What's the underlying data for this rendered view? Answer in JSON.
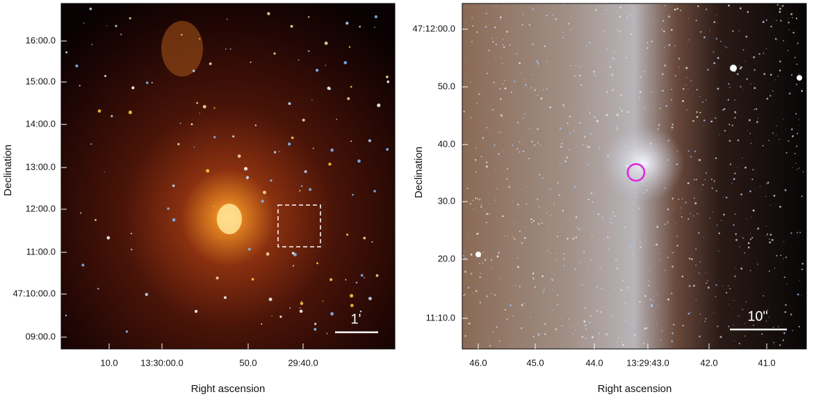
{
  "left_panel": {
    "y_ticks": [
      "16:00.0",
      "15:00.0",
      "14:00.0",
      "13:00.0",
      "12:00.0",
      "11:00.0",
      "47:10:00.0",
      "09:00.0"
    ],
    "x_ticks": [
      "10.0",
      "13:30:00.0",
      "50.0",
      "29:40.0"
    ],
    "x_label": "Right ascension",
    "y_label": "Declination",
    "scale_bar": "1'"
  },
  "right_panel": {
    "y_ticks": [
      "47:12:00.0",
      "50.0",
      "40.0",
      "30.0",
      "20.0",
      "11:10.0"
    ],
    "x_ticks": [
      "46.0",
      "45.0",
      "44.0",
      "13:29:43.0",
      "42.0",
      "41.0"
    ],
    "x_label": "Right ascension",
    "y_label": "Declination",
    "scale_bar": "10\""
  }
}
